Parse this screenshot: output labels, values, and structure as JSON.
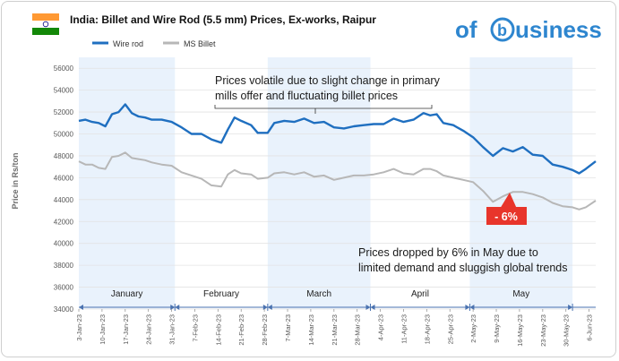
{
  "header": {
    "flag_name": "india-flag",
    "title": "India: Billet and Wire Rod (5.5 mm) Prices, Ex-works, Raipur",
    "logo_prefix": "of",
    "logo_mark": "b",
    "logo_suffix": "usiness"
  },
  "colors": {
    "wire_rod": "#1f6fc0",
    "billet": "#b7b7b7",
    "band": "#e9f2fc",
    "axis": "#4a72b0",
    "callout": "#e8352b",
    "logo": "#2e86cf"
  },
  "annotations": {
    "top_note_line1": "Prices volatile due to slight change in primary",
    "top_note_line2": "mills offer and fluctuating billet prices",
    "drop_badge": "- 6%",
    "bottom_note_line1": "Prices dropped by 6% in May due to",
    "bottom_note_line2": "limited demand and sluggish global trends"
  },
  "chart_data": {
    "type": "line",
    "title": "India: Billet and Wire Rod (5.5 mm) Prices, Ex-works, Raipur",
    "ylabel": "Price in Rs/ton",
    "xlabel": "",
    "ylim": [
      34000,
      57000
    ],
    "yticks": [
      34000,
      36000,
      38000,
      40000,
      42000,
      44000,
      46000,
      48000,
      50000,
      52000,
      54000,
      56000
    ],
    "ytick_labels": [
      "34000",
      "36000",
      "38000",
      "40000",
      "42000",
      "44000",
      "46000",
      "48000",
      "50000",
      "52000",
      "54000",
      "56000"
    ],
    "x_start": "3-Jan-23",
    "x_end": "8-Jun-23",
    "xtick_labels": [
      "3-Jan-23",
      "10-Jan-23",
      "17-Jan-23",
      "24-Jan-23",
      "31-Jan-23",
      "7-Feb-23",
      "14-Feb-23",
      "21-Feb-23",
      "28-Feb-23",
      "7-Mar-23",
      "14-Mar-23",
      "21-Mar-23",
      "28-Mar-23",
      "4-Apr-23",
      "11-Apr-23",
      "18-Apr-23",
      "25-Apr-23",
      "2-May-23",
      "9-May-23",
      "16-May-23",
      "23-May-23",
      "30-May-23",
      "6-Jun-23"
    ],
    "months": [
      "January",
      "February",
      "March",
      "April",
      "May"
    ],
    "grid": true,
    "legend_position": "top-left",
    "series": [
      {
        "name": "Wire rod",
        "points": [
          [
            "3-Jan-23",
            51200
          ],
          [
            "5-Jan-23",
            51300
          ],
          [
            "7-Jan-23",
            51100
          ],
          [
            "9-Jan-23",
            51000
          ],
          [
            "11-Jan-23",
            50700
          ],
          [
            "13-Jan-23",
            51800
          ],
          [
            "15-Jan-23",
            52000
          ],
          [
            "17-Jan-23",
            52700
          ],
          [
            "19-Jan-23",
            51900
          ],
          [
            "21-Jan-23",
            51600
          ],
          [
            "23-Jan-23",
            51500
          ],
          [
            "25-Jan-23",
            51300
          ],
          [
            "28-Jan-23",
            51300
          ],
          [
            "31-Jan-23",
            51100
          ],
          [
            "3-Feb-23",
            50600
          ],
          [
            "6-Feb-23",
            50000
          ],
          [
            "9-Feb-23",
            50000
          ],
          [
            "12-Feb-23",
            49500
          ],
          [
            "15-Feb-23",
            49200
          ],
          [
            "17-Feb-23",
            50400
          ],
          [
            "19-Feb-23",
            51500
          ],
          [
            "21-Feb-23",
            51200
          ],
          [
            "24-Feb-23",
            50800
          ],
          [
            "26-Feb-23",
            50100
          ],
          [
            "1-Mar-23",
            50100
          ],
          [
            "3-Mar-23",
            51000
          ],
          [
            "6-Mar-23",
            51200
          ],
          [
            "9-Mar-23",
            51100
          ],
          [
            "12-Mar-23",
            51400
          ],
          [
            "15-Mar-23",
            51000
          ],
          [
            "18-Mar-23",
            51100
          ],
          [
            "21-Mar-23",
            50600
          ],
          [
            "24-Mar-23",
            50500
          ],
          [
            "27-Mar-23",
            50700
          ],
          [
            "30-Mar-23",
            50800
          ],
          [
            "2-Apr-23",
            50900
          ],
          [
            "5-Apr-23",
            50900
          ],
          [
            "8-Apr-23",
            51400
          ],
          [
            "11-Apr-23",
            51100
          ],
          [
            "14-Apr-23",
            51300
          ],
          [
            "17-Apr-23",
            51900
          ],
          [
            "19-Apr-23",
            51700
          ],
          [
            "21-Apr-23",
            51800
          ],
          [
            "23-Apr-23",
            51000
          ],
          [
            "26-Apr-23",
            50800
          ],
          [
            "29-Apr-23",
            50300
          ],
          [
            "2-May-23",
            49700
          ],
          [
            "5-May-23",
            48800
          ],
          [
            "8-May-23",
            48000
          ],
          [
            "11-May-23",
            48700
          ],
          [
            "14-May-23",
            48400
          ],
          [
            "17-May-23",
            48800
          ],
          [
            "20-May-23",
            48100
          ],
          [
            "23-May-23",
            48000
          ],
          [
            "26-May-23",
            47200
          ],
          [
            "29-May-23",
            47000
          ],
          [
            "1-Jun-23",
            46700
          ],
          [
            "3-Jun-23",
            46400
          ],
          [
            "5-Jun-23",
            46800
          ],
          [
            "8-Jun-23",
            47500
          ]
        ]
      },
      {
        "name": "MS Billet",
        "points": [
          [
            "3-Jan-23",
            47500
          ],
          [
            "5-Jan-23",
            47200
          ],
          [
            "7-Jan-23",
            47200
          ],
          [
            "9-Jan-23",
            46900
          ],
          [
            "11-Jan-23",
            46800
          ],
          [
            "13-Jan-23",
            47900
          ],
          [
            "15-Jan-23",
            48000
          ],
          [
            "17-Jan-23",
            48300
          ],
          [
            "19-Jan-23",
            47800
          ],
          [
            "21-Jan-23",
            47700
          ],
          [
            "23-Jan-23",
            47600
          ],
          [
            "25-Jan-23",
            47400
          ],
          [
            "28-Jan-23",
            47200
          ],
          [
            "31-Jan-23",
            47100
          ],
          [
            "3-Feb-23",
            46500
          ],
          [
            "6-Feb-23",
            46200
          ],
          [
            "9-Feb-23",
            45900
          ],
          [
            "12-Feb-23",
            45300
          ],
          [
            "15-Feb-23",
            45200
          ],
          [
            "17-Feb-23",
            46300
          ],
          [
            "19-Feb-23",
            46700
          ],
          [
            "21-Feb-23",
            46400
          ],
          [
            "24-Feb-23",
            46300
          ],
          [
            "26-Feb-23",
            45900
          ],
          [
            "1-Mar-23",
            46000
          ],
          [
            "3-Mar-23",
            46400
          ],
          [
            "6-Mar-23",
            46500
          ],
          [
            "9-Mar-23",
            46300
          ],
          [
            "12-Mar-23",
            46500
          ],
          [
            "15-Mar-23",
            46100
          ],
          [
            "18-Mar-23",
            46200
          ],
          [
            "21-Mar-23",
            45800
          ],
          [
            "24-Mar-23",
            46000
          ],
          [
            "27-Mar-23",
            46200
          ],
          [
            "30-Mar-23",
            46200
          ],
          [
            "2-Apr-23",
            46300
          ],
          [
            "5-Apr-23",
            46500
          ],
          [
            "8-Apr-23",
            46800
          ],
          [
            "11-Apr-23",
            46400
          ],
          [
            "14-Apr-23",
            46300
          ],
          [
            "17-Apr-23",
            46800
          ],
          [
            "19-Apr-23",
            46800
          ],
          [
            "21-Apr-23",
            46600
          ],
          [
            "23-Apr-23",
            46200
          ],
          [
            "26-Apr-23",
            46000
          ],
          [
            "29-Apr-23",
            45800
          ],
          [
            "2-May-23",
            45600
          ],
          [
            "5-May-23",
            44800
          ],
          [
            "8-May-23",
            43800
          ],
          [
            "11-May-23",
            44300
          ],
          [
            "14-May-23",
            44700
          ],
          [
            "17-May-23",
            44700
          ],
          [
            "20-May-23",
            44500
          ],
          [
            "23-May-23",
            44200
          ],
          [
            "26-May-23",
            43700
          ],
          [
            "29-May-23",
            43400
          ],
          [
            "1-Jun-23",
            43300
          ],
          [
            "3-Jun-23",
            43100
          ],
          [
            "5-Jun-23",
            43300
          ],
          [
            "8-Jun-23",
            43900
          ]
        ]
      }
    ]
  }
}
